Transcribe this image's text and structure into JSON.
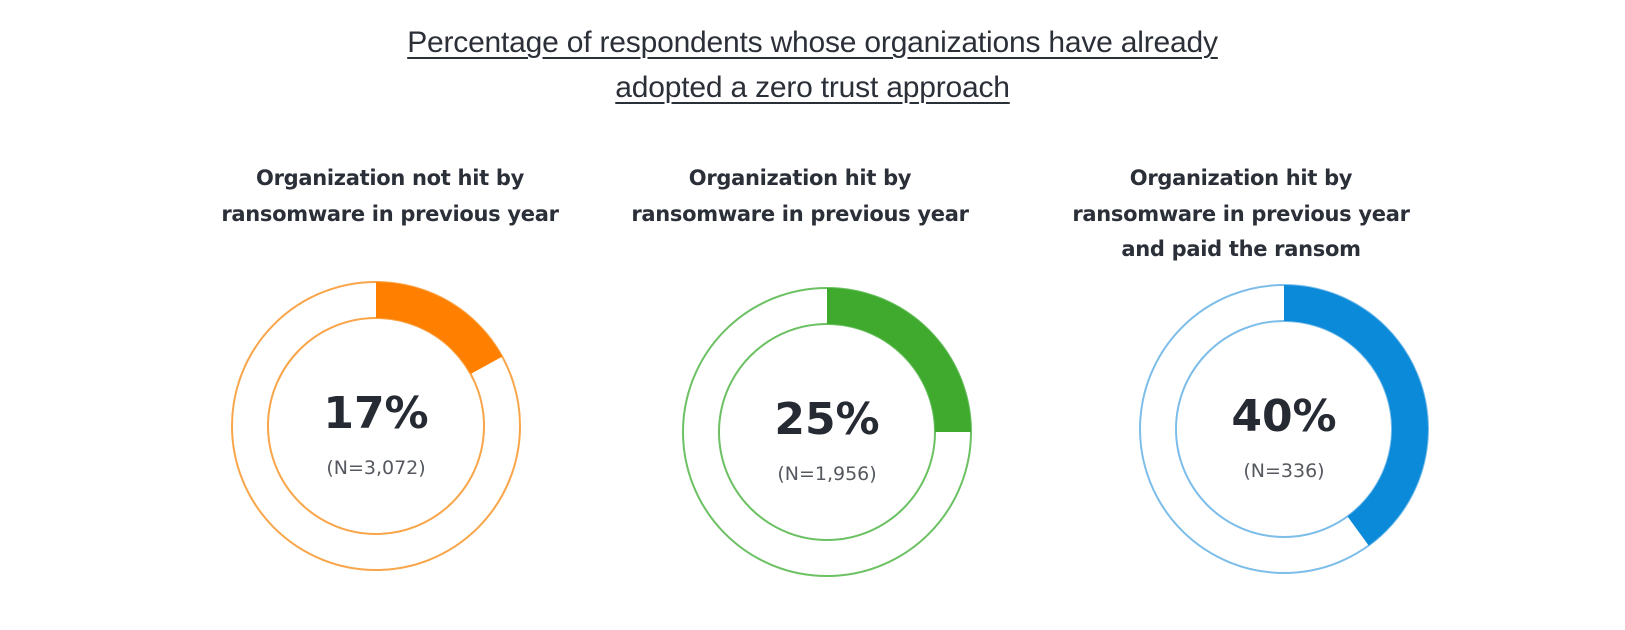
{
  "chart_data": {
    "type": "pie",
    "variant": "donut",
    "title": "Percentage of respondents whose organizations have already adopted a zero trust approach",
    "title_lines": [
      "Percentage of respondents whose organizations have already",
      "adopted a zero trust approach"
    ],
    "charts": [
      {
        "subtitle_lines": [
          "Organization not hit by",
          "ransomware in previous year"
        ],
        "value": 17,
        "value_label": "17%",
        "n_label": "(N=3,072)",
        "color": "#ff8000",
        "track_color": "#f9a54a"
      },
      {
        "subtitle_lines": [
          "Organization hit by",
          "ransomware in previous year"
        ],
        "value": 25,
        "value_label": "25%",
        "n_label": "(N=1,956)",
        "color": "#3faa2e",
        "track_color": "#6cc163"
      },
      {
        "subtitle_lines": [
          "Organization hit by",
          "ransomware in previous year",
          "and paid the ransom"
        ],
        "value": 40,
        "value_label": "40%",
        "n_label": "(N=336)",
        "color": "#0a8ad8",
        "track_color": "#7cbde9"
      }
    ]
  }
}
